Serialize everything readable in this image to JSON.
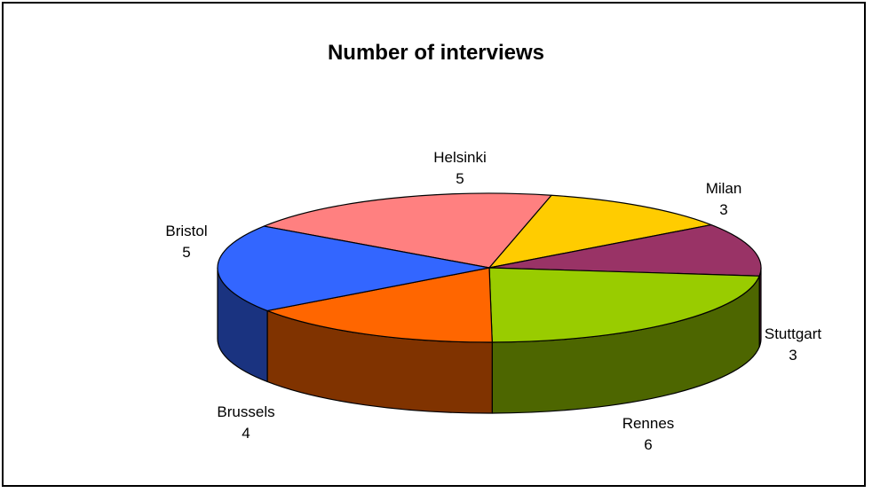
{
  "chart_data": {
    "type": "pie",
    "title": "Number of interviews",
    "three_d": true,
    "slices": [
      {
        "label": "Helsinki",
        "value": 5,
        "color": "#FF8080"
      },
      {
        "label": "Milan",
        "value": 3,
        "color": "#FFCC00"
      },
      {
        "label": "Stuttgart",
        "value": 3,
        "color": "#993366"
      },
      {
        "label": "Rennes",
        "value": 6,
        "color": "#99CC00"
      },
      {
        "label": "Brussels",
        "value": 4,
        "color": "#FF6600"
      },
      {
        "label": "Bristol",
        "value": 5,
        "color": "#3366FF"
      }
    ]
  }
}
